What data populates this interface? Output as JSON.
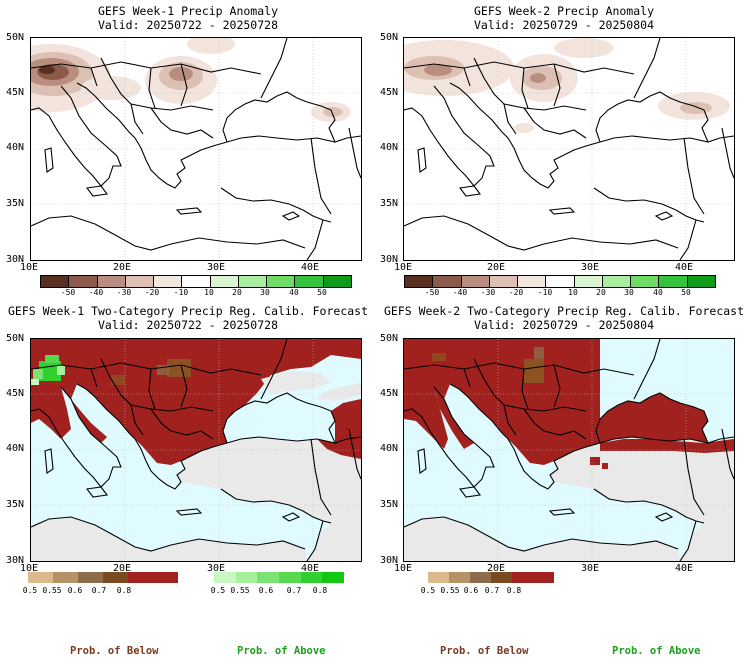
{
  "panels": [
    {
      "title": "GEFS Week-1 Precip Anomaly",
      "valid": "Valid: 20250722 - 20250728"
    },
    {
      "title": "GEFS Week-2 Precip Anomaly",
      "valid": "Valid: 20250729 - 20250804"
    },
    {
      "title": "GEFS Week-1 Two-Category Precip Reg. Calib. Forecast",
      "valid": "Valid: 20250722 - 20250728"
    },
    {
      "title": "GEFS Week-2 Two-Category Precip Reg. Calib. Forecast",
      "valid": "Valid: 20250729 - 20250804"
    }
  ],
  "lat_ticks": [
    "50N",
    "45N",
    "40N",
    "35N",
    "30N"
  ],
  "lon_ticks": [
    "10E",
    "20E",
    "30E",
    "40E"
  ],
  "anomaly_colorbar": {
    "labels": [
      "-50",
      "-40",
      "-30",
      "-20",
      "-10",
      "10",
      "20",
      "30",
      "40",
      "50"
    ],
    "colors": [
      "#5a2f22",
      "#8c5a4a",
      "#b98e80",
      "#dcc0b4",
      "#f3e6de",
      "#ffffff",
      "#d9f5d2",
      "#a8eda0",
      "#6fdc65",
      "#34c33a",
      "#109a1c"
    ]
  },
  "prob_below_colorbar": {
    "labels": [
      "0.5",
      "0.55",
      "0.6",
      "0.7",
      "0.8"
    ],
    "colors": [
      "#dcb98b",
      "#b59268",
      "#8e6b4a",
      "#7a4a20",
      "#a0211e",
      "#a0211e"
    ],
    "caption": "Prob. of Below"
  },
  "prob_above_colorbar": {
    "labels": [
      "0.5",
      "0.55",
      "0.6",
      "0.7",
      "0.8"
    ],
    "colors": [
      "#c8f7c0",
      "#a6f09c",
      "#7be373",
      "#56d84f",
      "#2fd02f",
      "#12c812"
    ],
    "caption": "Prob. of Above"
  },
  "colors": {
    "below_main": "#a0211e",
    "land_neutral": "#e9e9e9",
    "sea": "#e0fbff",
    "above": "#46dc3c",
    "brown_patch": "#8a5a22"
  }
}
